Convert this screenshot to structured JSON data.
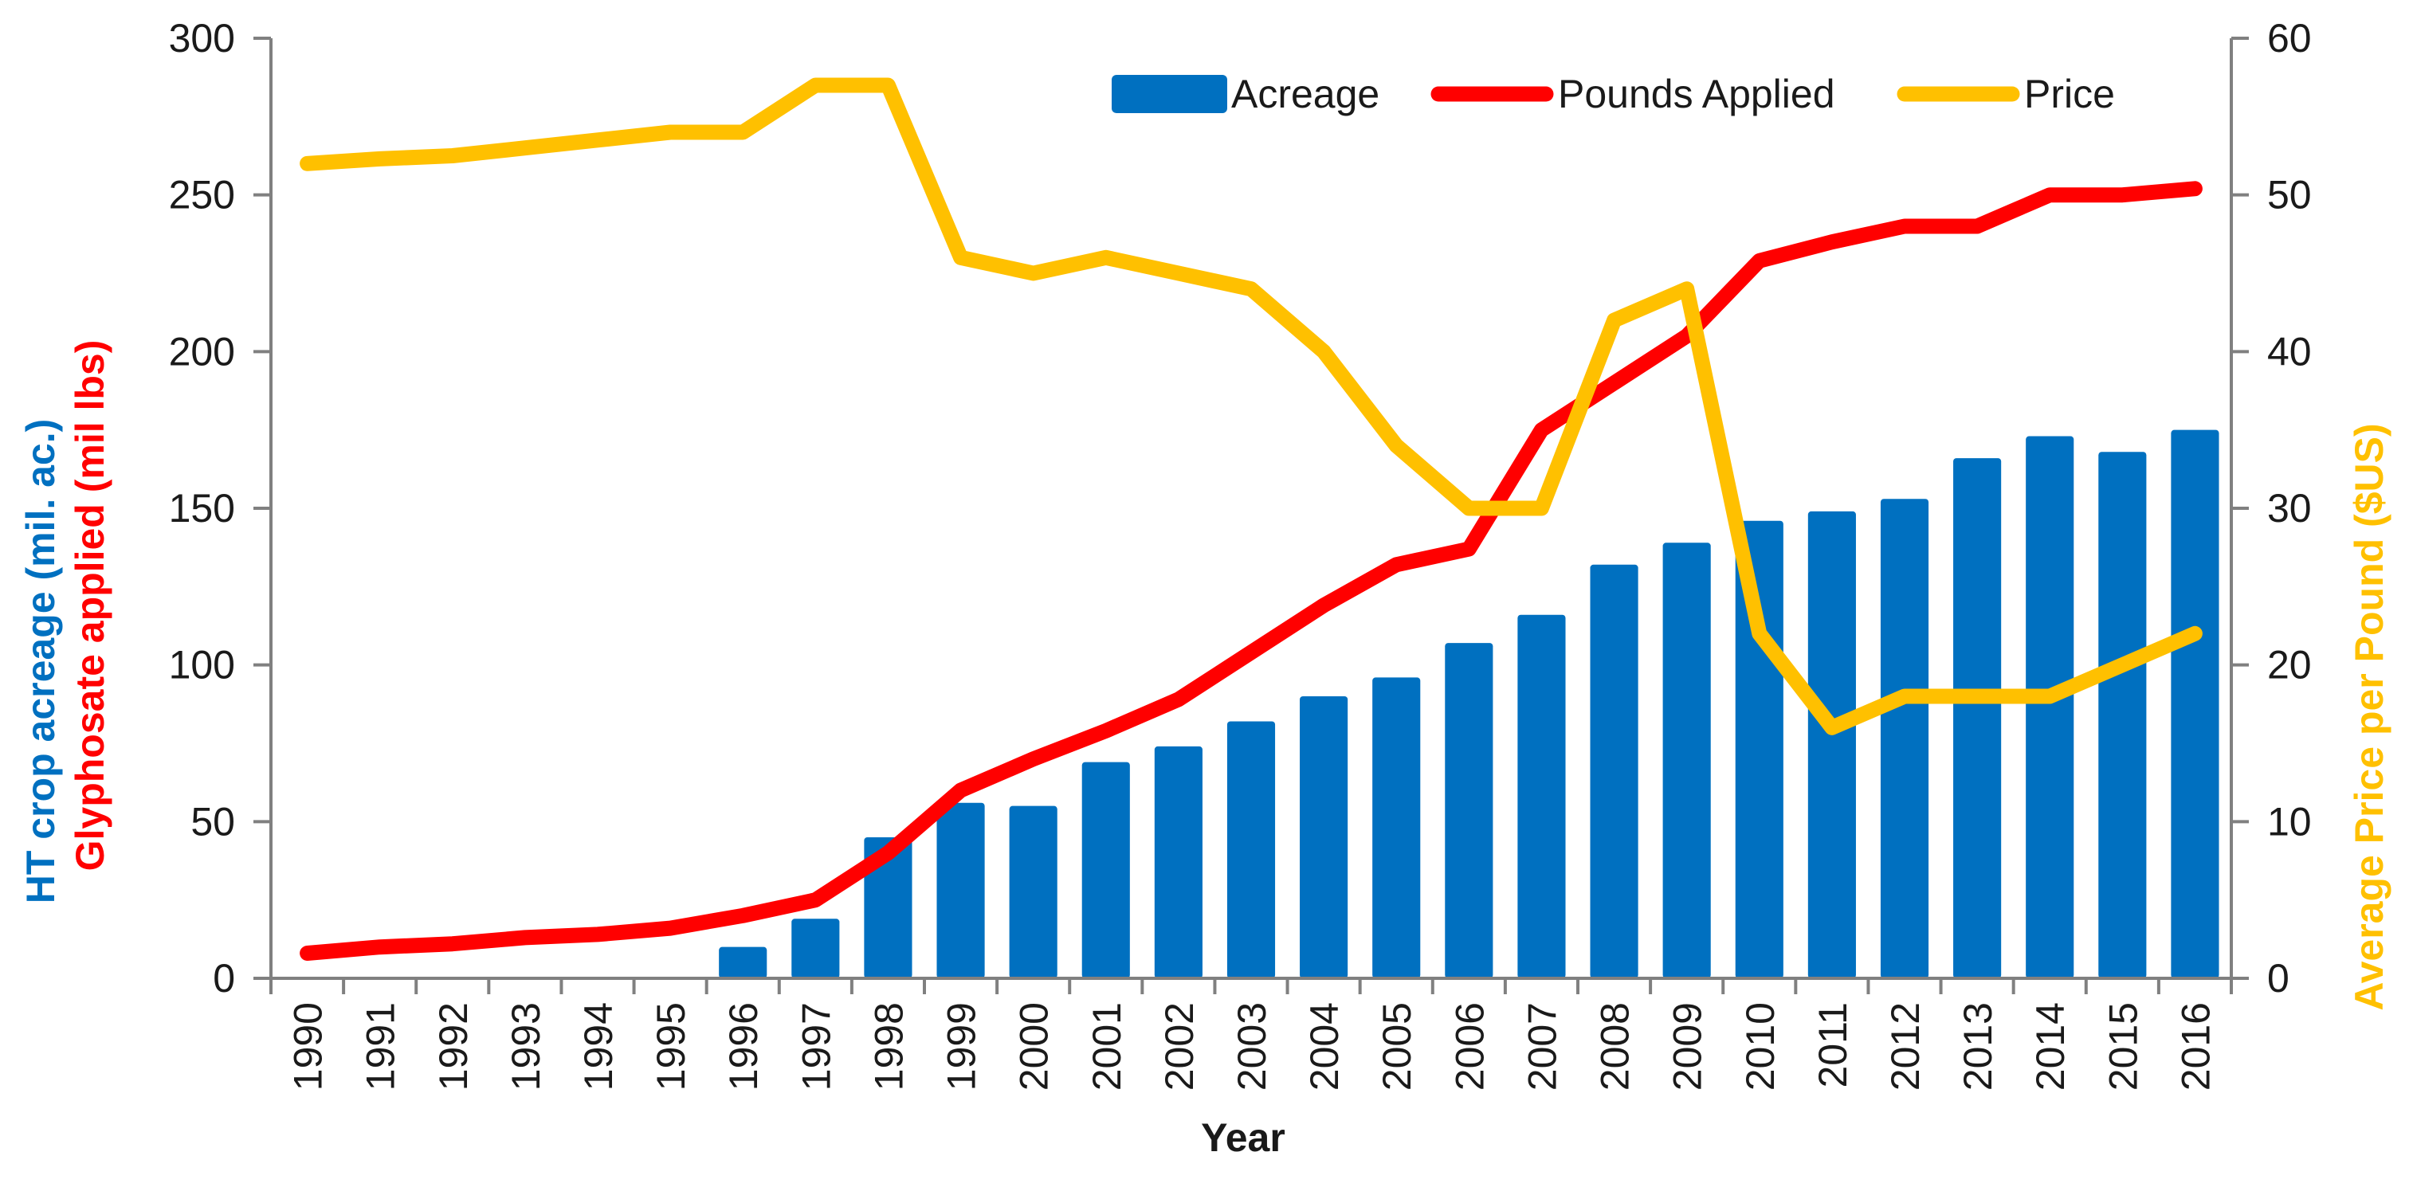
{
  "chart_data": {
    "type": "bar",
    "title": "",
    "xlabel": "Year",
    "ylabel_left": {
      "line1": "HT crop acreage (mil. ac.)",
      "line2": "Glyphosate applied (mil lbs)"
    },
    "ylabel_right": {
      "part1": "Average Price per Pound ",
      "part2": "($US)"
    },
    "ylim_left": [
      0,
      300
    ],
    "ylim_right": [
      0,
      60
    ],
    "yticks_left": [
      "0",
      "50",
      "100",
      "150",
      "200",
      "250",
      "300"
    ],
    "yticks_right": [
      "0",
      "10",
      "20",
      "30",
      "40",
      "50",
      "60"
    ],
    "grid": false,
    "legend": "top-right",
    "categories": [
      "1990",
      "1991",
      "1992",
      "1993",
      "1994",
      "1995",
      "1996",
      "1997",
      "1998",
      "1999",
      "2000",
      "2001",
      "2002",
      "2003",
      "2004",
      "2005",
      "2006",
      "2007",
      "2008",
      "2009",
      "2010",
      "2011",
      "2012",
      "2013",
      "2014",
      "2015",
      "2016"
    ],
    "series": [
      {
        "name": "Acreage",
        "type": "bar",
        "axis": "left",
        "color": "#0070C0",
        "values": [
          null,
          null,
          null,
          null,
          null,
          null,
          10,
          19,
          45,
          56,
          55,
          69,
          74,
          82,
          90,
          96,
          107,
          116,
          132,
          139,
          146,
          149,
          153,
          166,
          173,
          168,
          175
        ]
      },
      {
        "name": "Pounds Applied",
        "type": "line",
        "axis": "left",
        "color": "#FF0000",
        "values": [
          8,
          10,
          11,
          13,
          14,
          16,
          20,
          25,
          40,
          60,
          70,
          79,
          89,
          104,
          119,
          132,
          137,
          175,
          190,
          205,
          229,
          235,
          240,
          240,
          250,
          250,
          252
        ]
      },
      {
        "name": "Price",
        "type": "line",
        "axis": "right",
        "color": "#FFC000",
        "values": [
          52,
          52.3,
          52.5,
          53,
          53.5,
          54,
          54,
          57,
          57,
          46,
          45,
          46,
          45,
          44,
          40,
          34,
          30,
          30,
          42,
          44,
          22,
          16,
          18,
          18,
          18,
          20,
          22
        ]
      }
    ]
  },
  "colors": {
    "acreage": "#0070C0",
    "pounds": "#FF0000",
    "price": "#FFC000",
    "axis": "#808080",
    "text": "#1a1a1a",
    "left_title_blue": "#0070C0",
    "left_title_red": "#FF0000",
    "right_title": "#FFC000"
  }
}
